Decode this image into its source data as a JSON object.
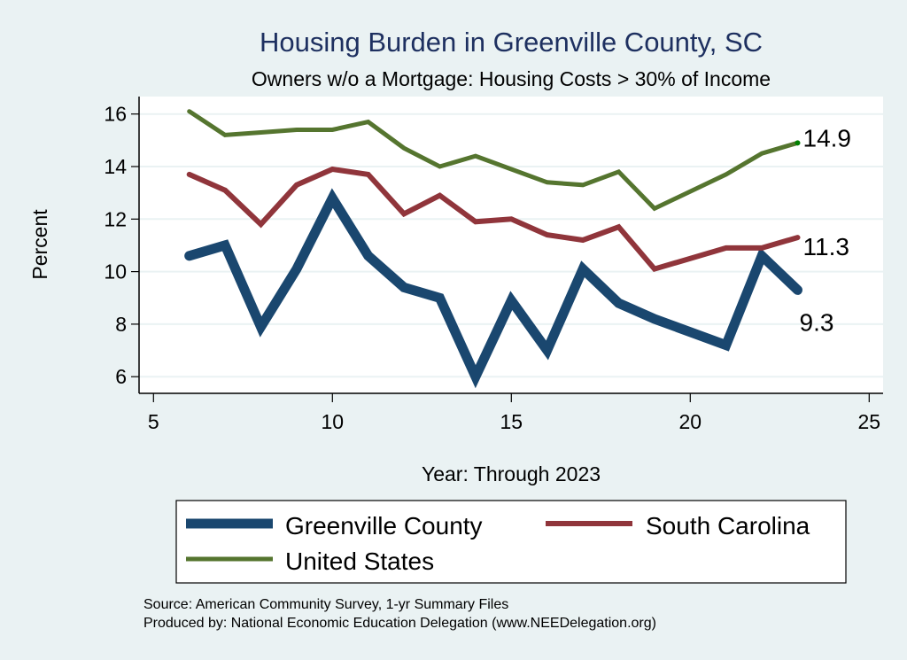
{
  "chart_data": {
    "type": "line",
    "title": "Housing Burden in Greenville County, SC",
    "subtitle": "Owners w/o a Mortgage: Housing Costs > 30% of Income",
    "xlabel": "Year: Through 2023",
    "ylabel": "Percent",
    "xlim": [
      5,
      25
    ],
    "ylim": [
      5.4,
      16.7
    ],
    "xticks": [
      5,
      10,
      15,
      20,
      25
    ],
    "yticks": [
      6,
      8,
      10,
      12,
      14,
      16
    ],
    "grid": "horizontal",
    "legend_position": "bottom",
    "series": [
      {
        "name": "Greenville County",
        "color": "#1a476f",
        "x": [
          6,
          7,
          8,
          9,
          10,
          11,
          12,
          13,
          14,
          15,
          16,
          17,
          18,
          19,
          21,
          22,
          23
        ],
        "values": [
          10.6,
          11.0,
          7.9,
          10.1,
          12.8,
          10.6,
          9.4,
          9.0,
          6.0,
          8.9,
          7.0,
          10.1,
          8.8,
          8.2,
          7.2,
          10.6,
          9.3
        ],
        "end_label": "9.3"
      },
      {
        "name": "South Carolina",
        "color": "#90353b",
        "x": [
          6,
          7,
          8,
          9,
          10,
          11,
          12,
          13,
          14,
          15,
          16,
          17,
          18,
          19,
          21,
          22,
          23
        ],
        "values": [
          13.7,
          13.1,
          11.8,
          13.3,
          13.9,
          13.7,
          12.2,
          12.9,
          11.9,
          12.0,
          11.4,
          11.2,
          11.7,
          10.1,
          10.9,
          10.9,
          11.3
        ],
        "end_label": "11.3"
      },
      {
        "name": "United States",
        "color": "#55752f",
        "x": [
          6,
          7,
          8,
          9,
          10,
          11,
          12,
          13,
          14,
          15,
          16,
          17,
          18,
          19,
          21,
          22,
          23
        ],
        "values": [
          16.1,
          15.2,
          15.3,
          15.4,
          15.4,
          15.7,
          14.7,
          14.0,
          14.4,
          13.9,
          13.4,
          13.3,
          13.8,
          12.4,
          13.7,
          14.5,
          14.9
        ],
        "end_label": "14.9"
      }
    ]
  },
  "notes": {
    "source": "Source: American Community Survey, 1-yr Summary Files",
    "produced_by": "Produced by: National Economic Education Delegation (www.NEEDelegation.org)"
  }
}
